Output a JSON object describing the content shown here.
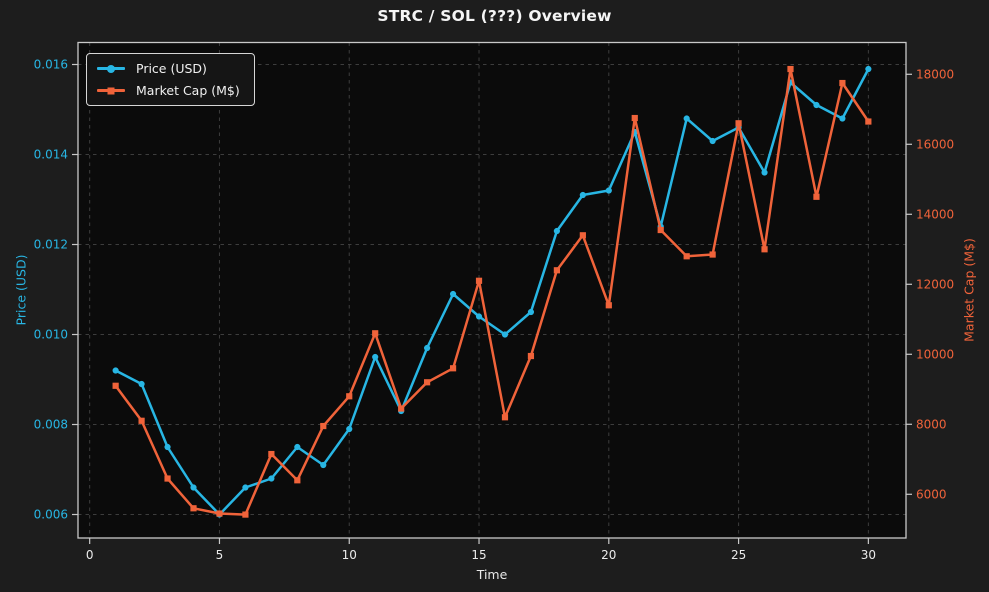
{
  "chart_data": {
    "type": "line",
    "title": "STRC / SOL (???) Overview",
    "xlabel": "Time",
    "grid": true,
    "legend_position": "upper left",
    "background": {
      "figure": "#1d1d1d",
      "plot": "#0b0b0b"
    },
    "x_range": [
      -0.45,
      31.45
    ],
    "x_ticks": [
      0,
      5,
      10,
      15,
      20,
      25,
      30
    ],
    "x_tick_labels": [
      "0",
      "5",
      "10",
      "15",
      "20",
      "25",
      "30"
    ],
    "x": [
      1,
      2,
      3,
      4,
      5,
      6,
      7,
      8,
      9,
      10,
      11,
      12,
      13,
      14,
      15,
      16,
      17,
      18,
      19,
      20,
      21,
      22,
      23,
      24,
      25,
      26,
      27,
      28,
      29,
      30
    ],
    "left_axis": {
      "label": "Price (USD)",
      "color": "#28b6e4",
      "tick_values": [
        0.006,
        0.008,
        0.01,
        0.012,
        0.014,
        0.016
      ],
      "tick_labels": [
        "0.006",
        "0.008",
        "0.010",
        "0.012",
        "0.014",
        "0.016"
      ],
      "range": [
        0.005478,
        0.016489
      ]
    },
    "right_axis": {
      "label": "Market Cap (M$)",
      "color": "#f0633a",
      "tick_values": [
        6000,
        8000,
        10000,
        12000,
        14000,
        16000,
        18000
      ],
      "tick_labels": [
        "6000",
        "8000",
        "10000",
        "12000",
        "14000",
        "16000",
        "18000"
      ],
      "range": [
        4751,
        18908
      ]
    },
    "series": [
      {
        "name": "Price (USD)",
        "yaxis": "left",
        "color": "#28b6e4",
        "marker": "circle",
        "values": [
          0.0092,
          0.0089,
          0.0075,
          0.0066,
          0.006,
          0.0066,
          0.0068,
          0.0075,
          0.0071,
          0.0079,
          0.0095,
          0.0083,
          0.0097,
          0.0109,
          0.0104,
          0.01,
          0.0105,
          0.0123,
          0.0131,
          0.0132,
          0.0145,
          0.0124,
          0.0148,
          0.0143,
          0.0146,
          0.0136,
          0.0156,
          0.0151,
          0.0148,
          0.0159
        ]
      },
      {
        "name": "Market Cap (M$)",
        "yaxis": "right",
        "color": "#f0633a",
        "marker": "square",
        "values": [
          9100,
          8100,
          6450,
          5600,
          5450,
          5420,
          7150,
          6400,
          7950,
          8800,
          10600,
          8450,
          9200,
          9600,
          12100,
          8200,
          9950,
          12400,
          13400,
          11400,
          16750,
          13550,
          12800,
          12850,
          16600,
          13000,
          18150,
          14500,
          17750,
          16650
        ]
      }
    ]
  }
}
